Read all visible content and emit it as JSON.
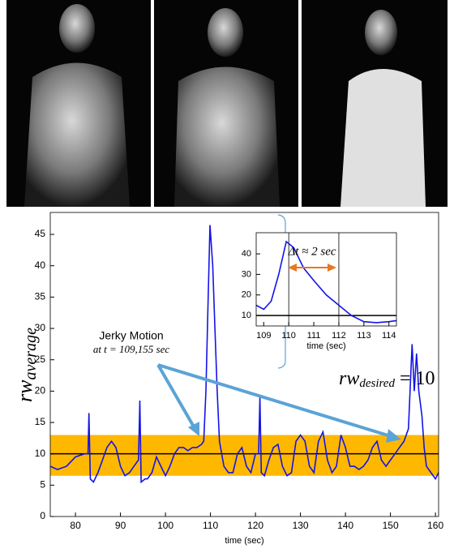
{
  "chart_data": [
    {
      "type": "line",
      "x_label": "time (sec)",
      "y_label": {
        "main": "rw",
        "sub": "average"
      },
      "xlim": [
        74.4,
        160.7
      ],
      "ylim": [
        0,
        48.5
      ],
      "xticks": [
        80,
        90,
        100,
        110,
        120,
        130,
        140,
        150,
        160
      ],
      "yticks": [
        0,
        5,
        10,
        15,
        20,
        25,
        30,
        35,
        40,
        45
      ],
      "band": [
        6.5,
        13
      ],
      "band_color": "#ffb800",
      "reference": 10,
      "annotations": {
        "jerky": "Jerky Motion",
        "jerky_time": "at t = 109,155 sec",
        "desired": {
          "main": "rw",
          "sub": "desired",
          "rest": " = 10"
        }
      },
      "series": [
        {
          "color": "#1414e6",
          "x": [
            74.4,
            76,
            78,
            80,
            82,
            82.8,
            83,
            83.3,
            84,
            85,
            86,
            87,
            88,
            89,
            90,
            91,
            92,
            93,
            94,
            94.3,
            94.6,
            95.5,
            96,
            97,
            98,
            99,
            100,
            101,
            102,
            103,
            104,
            105,
            106,
            107,
            108,
            108.5,
            109,
            109.5,
            109.9,
            110.5,
            111,
            111.5,
            112,
            113,
            114,
            115,
            116,
            117,
            118,
            119,
            120,
            120.7,
            121,
            121.3,
            122,
            123,
            124,
            125,
            126,
            127,
            128,
            129,
            130,
            131,
            132,
            133,
            134,
            135,
            136,
            137,
            138,
            139,
            140,
            141,
            142,
            143,
            144,
            145,
            146,
            147,
            148,
            149,
            150,
            151,
            152,
            153,
            154,
            154.8,
            155.3,
            155.8,
            156.3,
            157,
            157.5,
            158,
            159,
            160,
            160.7
          ],
          "values": [
            8,
            7.5,
            8,
            9.5,
            10,
            10,
            16.5,
            6,
            5.5,
            7,
            9,
            11,
            12,
            11,
            8,
            6.5,
            7,
            8,
            9,
            18.5,
            5.5,
            6,
            6,
            7,
            9.5,
            8,
            6.5,
            8,
            10,
            11,
            11,
            10.5,
            11,
            11,
            11.5,
            12,
            20,
            35,
            46.5,
            40,
            30,
            20,
            12,
            8,
            7,
            7,
            10,
            11,
            8,
            7,
            10,
            10,
            19,
            7,
            6.5,
            9,
            11,
            11.5,
            8,
            6.5,
            7,
            12,
            13,
            12,
            8,
            7,
            12,
            13.5,
            9,
            7,
            8,
            13,
            11,
            8,
            8,
            7.5,
            8,
            9,
            11,
            12,
            9,
            8,
            9,
            10,
            11,
            12,
            14,
            27.5,
            20,
            26,
            20,
            16,
            11,
            8,
            7,
            6,
            7
          ]
        }
      ]
    },
    {
      "type": "line",
      "x_label": "time (sec)",
      "xlim": [
        108.7,
        114.3
      ],
      "ylim": [
        4.9,
        50.3
      ],
      "xticks": [
        109,
        110,
        111,
        112,
        113,
        114
      ],
      "yticks": [
        10,
        20,
        30,
        40
      ],
      "reference": 10,
      "vlines": [
        110,
        112
      ],
      "annotations": {
        "delta": "Δt ≈ 2 sec"
      },
      "series": [
        {
          "color": "#1414e6",
          "x": [
            108.7,
            109,
            109.3,
            109.6,
            109.9,
            110.2,
            110.6,
            111,
            111.5,
            112,
            112.5,
            113,
            113.5,
            114,
            114.3
          ],
          "values": [
            15,
            13,
            17,
            30,
            46,
            43,
            33,
            27,
            20,
            15,
            10,
            7,
            6.5,
            7,
            7.5
          ]
        }
      ]
    }
  ]
}
